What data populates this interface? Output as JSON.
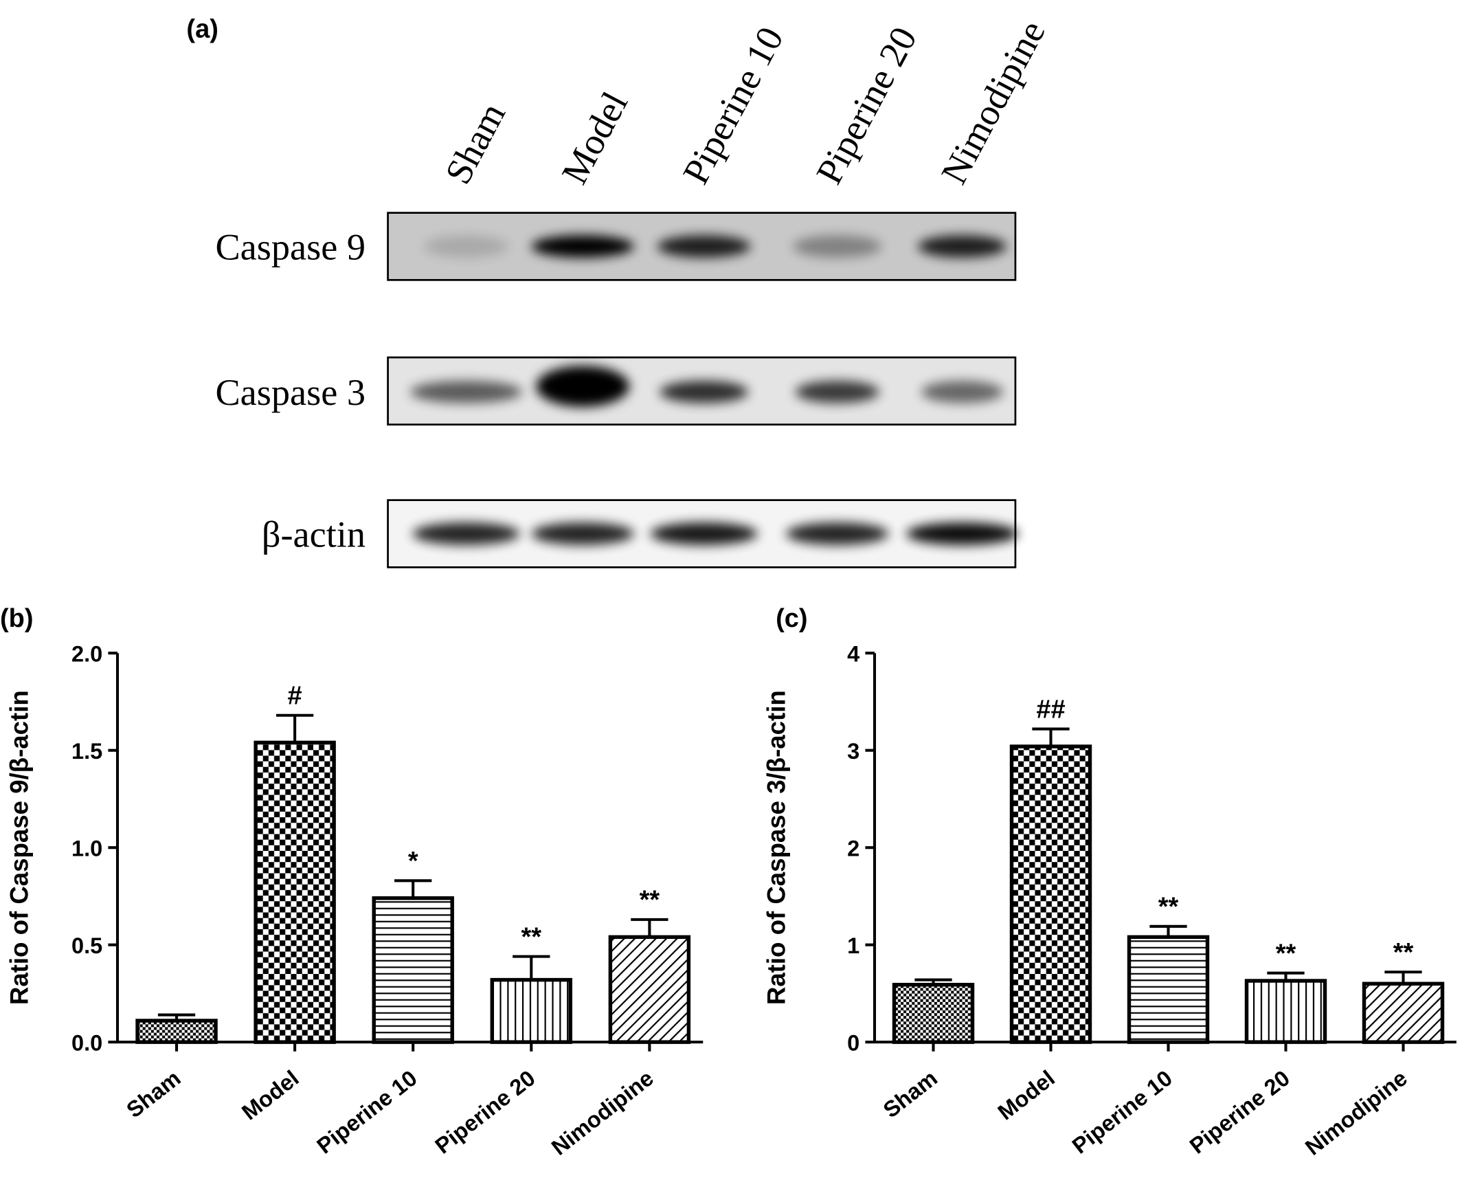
{
  "blot": {
    "label": "(a)",
    "lanes": [
      "Sham",
      "Model",
      "Piperine 10",
      "Piperine 20",
      "Nimodipine"
    ],
    "rows": [
      "Caspase 9",
      "Caspase 3",
      "β-actin"
    ]
  },
  "chart_data": [
    {
      "type": "bar",
      "panel_label": "(b)",
      "y_label": "Ratio of Caspase 9/β-actin",
      "categories": [
        "Sham",
        "Model",
        "Piperine 10",
        "Piperine 20",
        "Nimodipine"
      ],
      "values": [
        0.11,
        1.54,
        0.74,
        0.32,
        0.54
      ],
      "errors": [
        0.03,
        0.14,
        0.09,
        0.12,
        0.09
      ],
      "annotations": [
        null,
        "#",
        "*",
        "**",
        "**"
      ],
      "ylim": [
        0,
        2
      ],
      "yticks": [
        {
          "value": 0,
          "label": "0.0"
        },
        0.5,
        {
          "value": 1,
          "label": "1.0"
        },
        1.5,
        {
          "value": 2,
          "label": "2.0"
        }
      ]
    },
    {
      "type": "bar",
      "panel_label": "(c)",
      "y_label": "Ratio of Caspase 3/β-actin",
      "categories": [
        "Sham",
        "Model",
        "Piperine 10",
        "Piperine 20",
        "Nimodipine"
      ],
      "values": [
        0.59,
        3.04,
        1.08,
        0.63,
        0.6
      ],
      "errors": [
        0.05,
        0.18,
        0.11,
        0.08,
        0.12
      ],
      "annotations": [
        null,
        "##",
        "**",
        "**",
        "**"
      ],
      "ylim": [
        0,
        4
      ],
      "yticks": [
        0,
        1,
        2,
        3,
        4
      ]
    }
  ]
}
